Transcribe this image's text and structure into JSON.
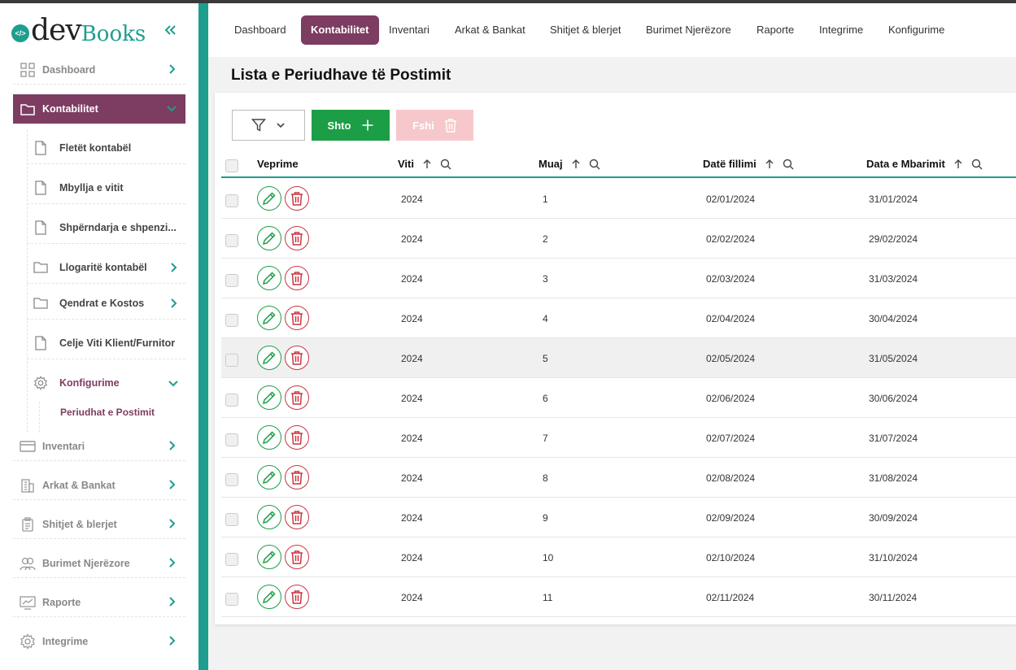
{
  "brand": {
    "dev": "dev",
    "books": "Books",
    "mark": "</>"
  },
  "sidebar": {
    "items": [
      {
        "label": "Dashboard",
        "icon": "grid-icon"
      },
      {
        "label": "Kontabilitet",
        "icon": "folder-icon",
        "active": true
      },
      {
        "label": "Inventari",
        "icon": "card-icon"
      },
      {
        "label": "Arkat & Bankat",
        "icon": "building-icon"
      },
      {
        "label": "Shitjet & blerjet",
        "icon": "clipboard-icon"
      },
      {
        "label": "Burimet Njerëzore",
        "icon": "users-icon"
      },
      {
        "label": "Raporte",
        "icon": "chart-icon"
      },
      {
        "label": "Integrime",
        "icon": "gear-icon"
      }
    ],
    "subitems": [
      {
        "label": "Fletët kontabël",
        "icon": "file-icon"
      },
      {
        "label": "Mbyllja e vitit",
        "icon": "file-icon"
      },
      {
        "label": "Shpërndarja e shpenzi...",
        "icon": "file-icon"
      },
      {
        "label": "Llogaritë kontabël",
        "icon": "folder-icon"
      },
      {
        "label": "Qendrat e Kostos",
        "icon": "folder-icon"
      },
      {
        "label": "Celje Viti Klient/Furnitor",
        "icon": "file-icon"
      },
      {
        "label": "Konfigurime",
        "icon": "gear-icon"
      }
    ],
    "subsub": {
      "label": "Periudhat e Postimit"
    }
  },
  "topnav": {
    "tabs": [
      {
        "label": "Dashboard"
      },
      {
        "label": "Kontabilitet",
        "active": true
      },
      {
        "label": "Inventari"
      },
      {
        "label": "Arkat & Bankat"
      },
      {
        "label": "Shitjet & blerjet"
      },
      {
        "label": "Burimet Njerëzore"
      },
      {
        "label": "Raporte"
      },
      {
        "label": "Integrime"
      },
      {
        "label": "Konfigurime"
      }
    ]
  },
  "page": {
    "title": "Lista e Periudhave të Postimit"
  },
  "toolbar": {
    "add_label": "Shto",
    "delete_label": "Fshi"
  },
  "table": {
    "headers": {
      "actions": "Veprime",
      "year": "Viti",
      "month": "Muaj",
      "start": "Datë fillimi",
      "end": "Data e Mbarimit"
    },
    "rows": [
      {
        "year": "2024",
        "month": "1",
        "start": "02/01/2024",
        "end": "31/01/2024"
      },
      {
        "year": "2024",
        "month": "2",
        "start": "02/02/2024",
        "end": "29/02/2024"
      },
      {
        "year": "2024",
        "month": "3",
        "start": "02/03/2024",
        "end": "31/03/2024"
      },
      {
        "year": "2024",
        "month": "4",
        "start": "02/04/2024",
        "end": "30/04/2024"
      },
      {
        "year": "2024",
        "month": "5",
        "start": "02/05/2024",
        "end": "31/05/2024"
      },
      {
        "year": "2024",
        "month": "6",
        "start": "02/06/2024",
        "end": "30/06/2024"
      },
      {
        "year": "2024",
        "month": "7",
        "start": "02/07/2024",
        "end": "31/07/2024"
      },
      {
        "year": "2024",
        "month": "8",
        "start": "02/08/2024",
        "end": "31/08/2024"
      },
      {
        "year": "2024",
        "month": "9",
        "start": "02/09/2024",
        "end": "30/09/2024"
      },
      {
        "year": "2024",
        "month": "10",
        "start": "02/10/2024",
        "end": "31/10/2024"
      },
      {
        "year": "2024",
        "month": "11",
        "start": "02/11/2024",
        "end": "30/11/2024"
      }
    ]
  },
  "colors": {
    "accent": "#7d3c61",
    "teal": "#1e9e8e",
    "add": "#1b9e45",
    "delete_disabled": "#f6c8cc",
    "trash": "#cc3340"
  }
}
